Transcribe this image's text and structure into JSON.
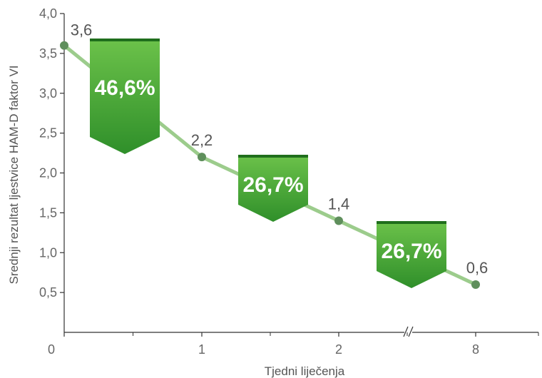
{
  "chart_data": {
    "type": "line",
    "xlabel": "Tjedni liječenja",
    "ylabel": "Srednji rezultat ljestvice  HAM-D faktor VI",
    "x_tick_labels": [
      "0",
      "1",
      "2",
      "8"
    ],
    "y_tick_labels": [
      "0,5",
      "1,0",
      "1,5",
      "2,0",
      "2,5",
      "3,0",
      "3,5",
      "4,0"
    ],
    "ylim": [
      0,
      4.0
    ],
    "x_axis_break": "between 2 and 8",
    "series": [
      {
        "x": [
          "0",
          "1",
          "2",
          "8"
        ],
        "values": [
          3.6,
          2.2,
          1.4,
          0.6
        ],
        "labels": [
          "3,6",
          "2,2",
          "1,4",
          "0,6"
        ]
      }
    ],
    "annotations": [
      {
        "text": "46,6%",
        "between": [
          "0",
          "1"
        ]
      },
      {
        "text": "26,7%",
        "between": [
          "1",
          "2"
        ]
      },
      {
        "text": "26,7%",
        "between": [
          "2",
          "8"
        ]
      }
    ],
    "colors": {
      "line": "#9ccc8c",
      "marker": "#5f8f5c",
      "badge_light": "#6cc24a",
      "badge_dark": "#2f8f2a",
      "axis": "#333333"
    }
  }
}
